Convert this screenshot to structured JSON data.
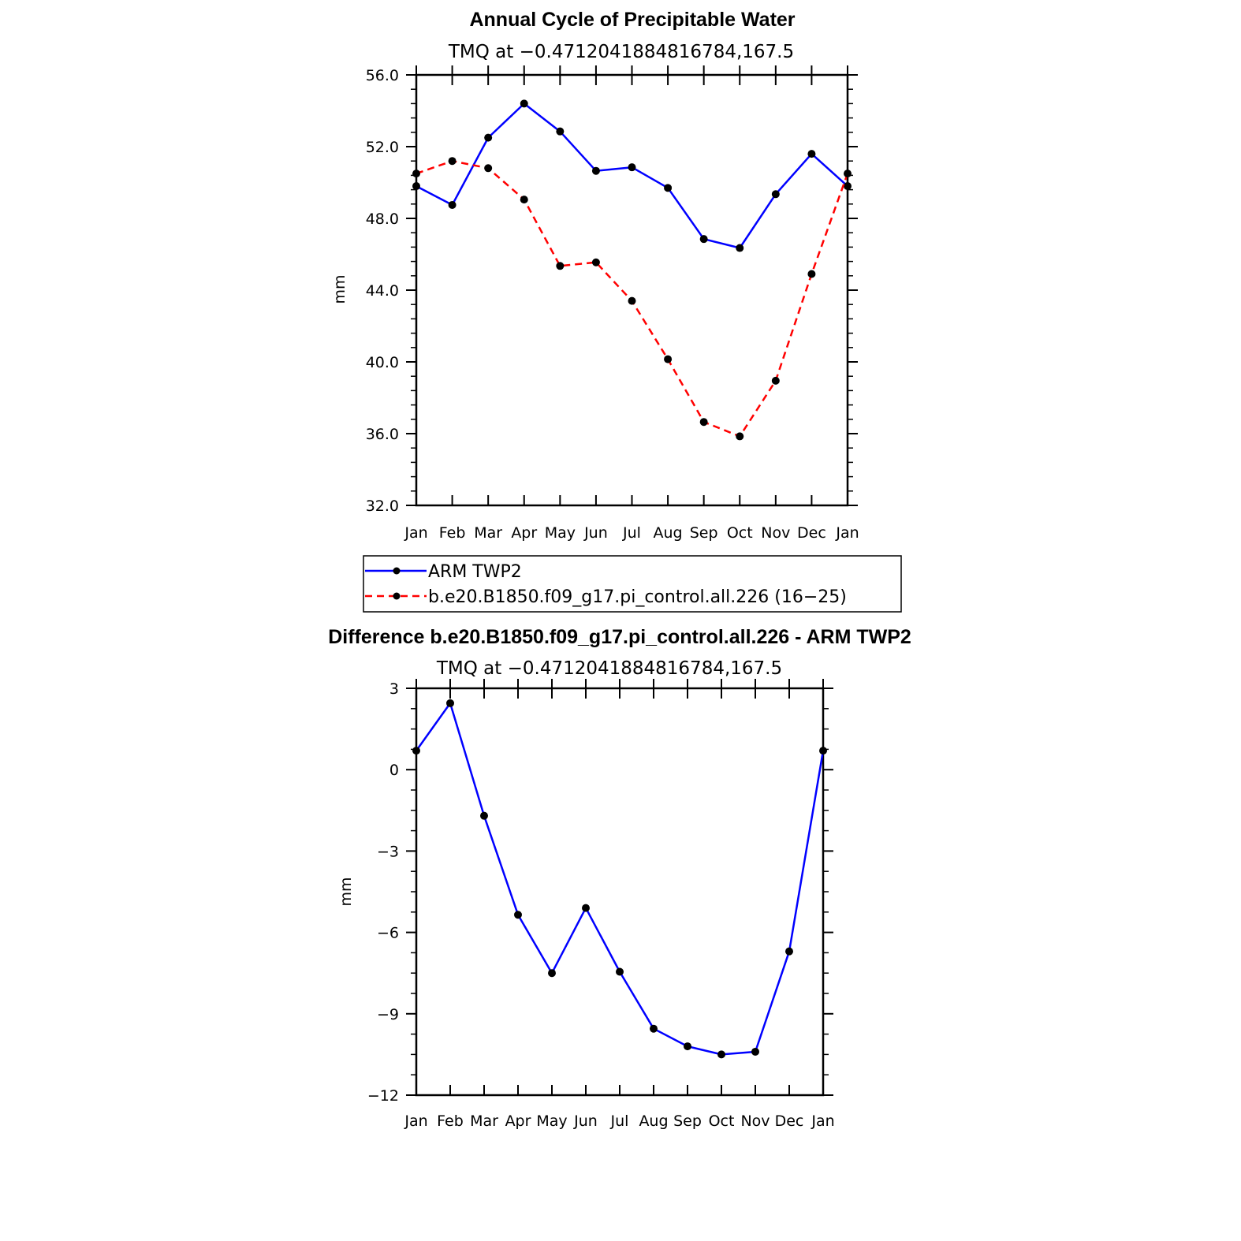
{
  "chart_data": [
    {
      "type": "line",
      "title": "Annual Cycle of Precipitable Water",
      "subtitle": "TMQ at −0.4712041884816784,167.5",
      "ylabel": "mm",
      "ylim": [
        32,
        56
      ],
      "yticks": [
        "56.0",
        "52.0",
        "48.0",
        "44.0",
        "40.0",
        "36.0",
        "32.0"
      ],
      "ytick_values": [
        56,
        52,
        48,
        44,
        40,
        36,
        32
      ],
      "categories": [
        "Jan",
        "Feb",
        "Mar",
        "Apr",
        "May",
        "Jun",
        "Jul",
        "Aug",
        "Sep",
        "Oct",
        "Nov",
        "Dec",
        "Jan"
      ],
      "series": [
        {
          "name": "ARM TWP2",
          "color": "#0000ff",
          "dash": "solid",
          "values": [
            49.8,
            48.75,
            52.5,
            54.4,
            52.85,
            50.65,
            50.85,
            49.7,
            46.85,
            46.35,
            49.35,
            51.6,
            49.8
          ]
        },
        {
          "name": "b.e20.B1850.f09_g17.pi_control.all.226 (16−25)",
          "color": "#ff0000",
          "dash": "dashed",
          "values": [
            50.5,
            51.2,
            50.8,
            49.05,
            45.35,
            45.55,
            43.4,
            40.15,
            36.65,
            35.85,
            38.95,
            44.9,
            50.5
          ]
        }
      ],
      "legend_position": "bottom"
    },
    {
      "type": "line",
      "title": "Difference b.e20.B1850.f09_g17.pi_control.all.226 - ARM TWP2",
      "subtitle": "TMQ at −0.4712041884816784,167.5",
      "ylabel": "mm",
      "ylim": [
        -12,
        3
      ],
      "yticks": [
        "3",
        "0",
        "−3",
        "−6",
        "−9",
        "−12"
      ],
      "ytick_values": [
        3,
        0,
        -3,
        -6,
        -9,
        -12
      ],
      "categories": [
        "Jan",
        "Feb",
        "Mar",
        "Apr",
        "May",
        "Jun",
        "Jul",
        "Aug",
        "Sep",
        "Oct",
        "Nov",
        "Dec",
        "Jan"
      ],
      "series": [
        {
          "name": "Difference",
          "color": "#0000ff",
          "dash": "solid",
          "values": [
            0.7,
            2.45,
            -1.7,
            -5.35,
            -7.5,
            -5.1,
            -7.45,
            -9.55,
            -10.2,
            -10.5,
            -10.4,
            -6.7,
            0.7
          ]
        }
      ]
    }
  ]
}
